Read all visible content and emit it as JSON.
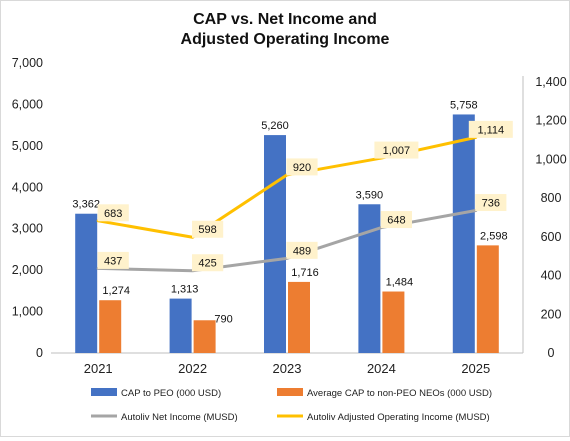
{
  "chart_data": {
    "type": "bar",
    "title_lines": [
      "CAP vs. Net Income and",
      "Adjusted Operating Income"
    ],
    "categories": [
      "2021",
      "2022",
      "2023",
      "2024",
      "2025"
    ],
    "series": [
      {
        "name": "CAP to PEO (000 USD)",
        "kind": "bar",
        "axis": "left",
        "color": "#4472C4",
        "values": [
          3362,
          1313,
          5260,
          3590,
          5758
        ],
        "labels": [
          "3,362",
          "1,313",
          "5,260",
          "3,590",
          "5,758"
        ]
      },
      {
        "name": "Average CAP to non-PEO NEOs (000 USD)",
        "kind": "bar",
        "axis": "left",
        "color": "#ED7D31",
        "values": [
          1274,
          790,
          1716,
          1484,
          2598
        ],
        "labels": [
          "1,274",
          "790",
          "1,716",
          "1,484",
          "2,598"
        ]
      },
      {
        "name": "Autoliv Net Income (MUSD)",
        "kind": "line",
        "axis": "right",
        "color": "#A5A5A5",
        "values": [
          437,
          425,
          489,
          648,
          736
        ],
        "labels": [
          "437",
          "425",
          "489",
          "648",
          "736"
        ]
      },
      {
        "name": "Autoliv Adjusted Operating Income (MUSD)",
        "kind": "line",
        "axis": "right",
        "color": "#FFC000",
        "values": [
          683,
          598,
          920,
          1007,
          1114
        ],
        "labels": [
          "683",
          "598",
          "920",
          "1,007",
          "1,114"
        ]
      }
    ],
    "left_axis": {
      "min": 0,
      "max": 7000,
      "ticks": [
        0,
        1000,
        2000,
        3000,
        4000,
        5000,
        6000,
        7000
      ],
      "tick_labels": [
        "0",
        "1,000",
        "2,000",
        "3,000",
        "4,000",
        "5,000",
        "6,000",
        "7,000"
      ]
    },
    "right_axis": {
      "min": 0,
      "max": 1500,
      "ticks": [
        0,
        200,
        400,
        600,
        800,
        1000,
        1200,
        1400
      ],
      "tick_labels": [
        "0",
        "200",
        "400",
        "600",
        "800",
        "1,000",
        "1,200",
        "1,400"
      ]
    },
    "grid": false,
    "legend_position": "bottom",
    "label_box_color": "#FFF2CC"
  }
}
